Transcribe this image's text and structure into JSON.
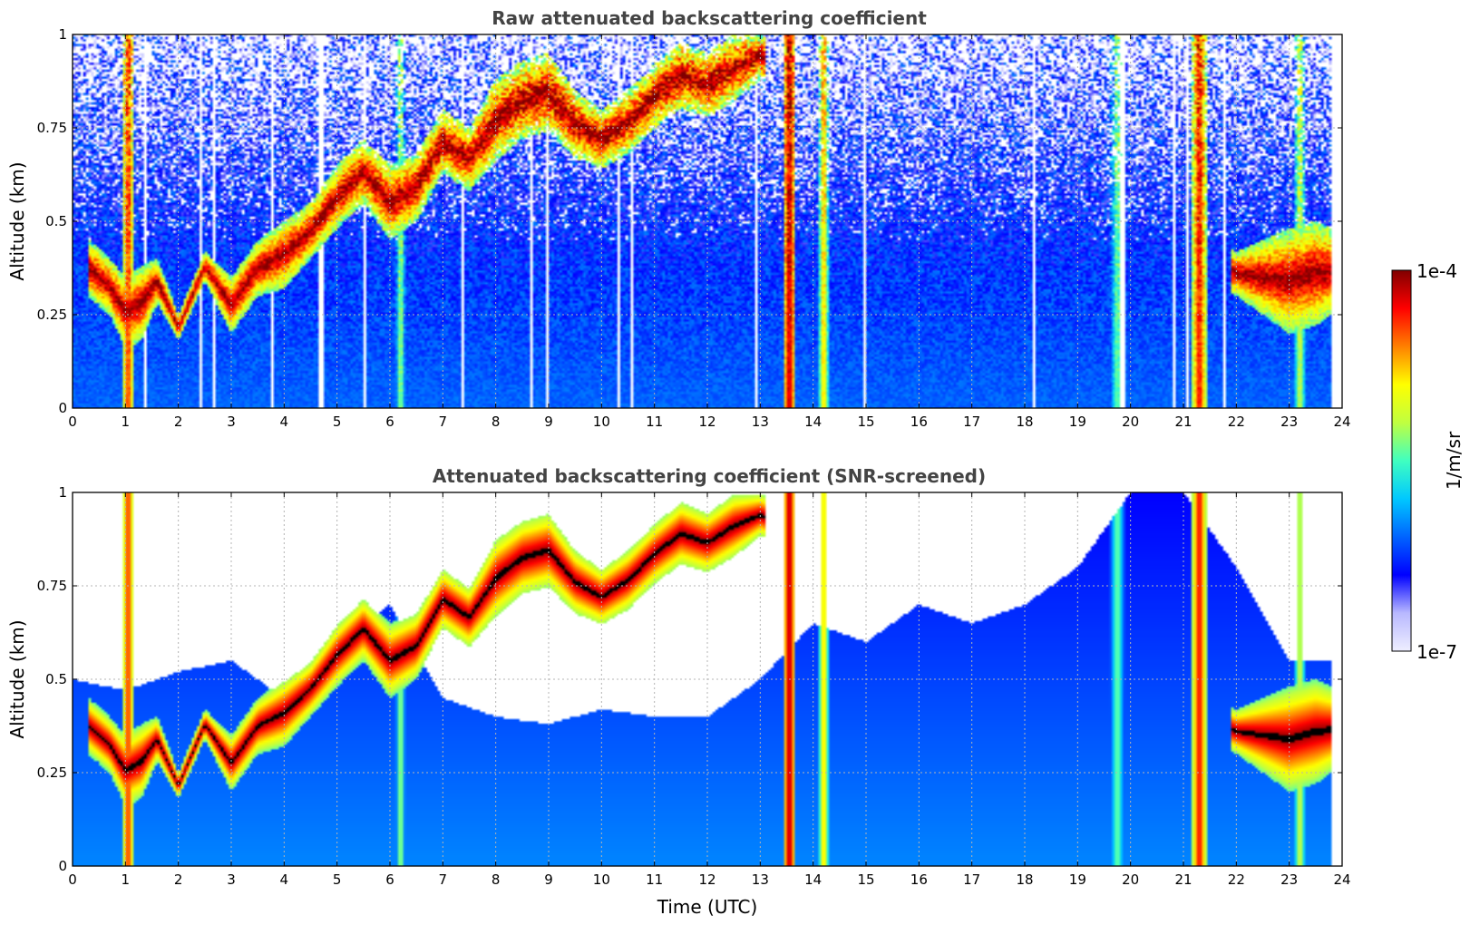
{
  "colors": {
    "background": "#ffffff",
    "title": "#444444",
    "grid": "#b4b4b4",
    "sky_floor": "#1e3cff",
    "cloud_core": "#800000",
    "saturated": "#000000",
    "colorscale": [
      "#eeeeff",
      "#b8b8ff",
      "#0000ff",
      "#0064ff",
      "#00c8ff",
      "#40ffc0",
      "#c0ff40",
      "#ffff00",
      "#ff8000",
      "#ff0000",
      "#800000"
    ]
  },
  "colorbar": {
    "label": "1/m/sr",
    "top_label": "1e-4",
    "bottom_label": "1e-7",
    "scale": "log",
    "range": [
      1e-07,
      0.0001
    ],
    "colormap": "jet"
  },
  "chart_data": [
    {
      "type": "heatmap",
      "title": "Raw attenuated backscattering coefficient",
      "xlabel": "",
      "ylabel": "Altitude (km)",
      "xlim": [
        0,
        24
      ],
      "ylim": [
        0,
        1
      ],
      "x_ticks": [
        "0",
        "1",
        "2",
        "3",
        "4",
        "5",
        "6",
        "7",
        "8",
        "9",
        "10",
        "11",
        "12",
        "13",
        "14",
        "15",
        "16",
        "17",
        "18",
        "19",
        "20",
        "21",
        "22",
        "23",
        "24"
      ],
      "y_ticks": [
        "0",
        "0.25",
        "0.5",
        "0.75",
        "1"
      ],
      "grid": true,
      "data_end_hour": 23.8,
      "z_scale": "log10",
      "background_log10": -6.5,
      "noise_level": 0.5,
      "cloud_layer_log10": -4.0,
      "cloud_layer": {
        "hours": [
          0.3,
          0.7,
          1.0,
          1.3,
          1.6,
          2.0,
          2.5,
          3.0,
          3.5,
          4.0,
          4.5,
          5.0,
          5.5,
          6.0,
          6.5,
          7.0,
          7.5,
          8.0,
          8.5,
          9.0,
          9.5,
          10.0,
          10.5,
          11.0,
          11.5,
          12.0,
          12.5,
          13.0,
          22.0,
          22.5,
          23.0,
          23.5,
          23.8
        ],
        "base_km": [
          0.3,
          0.25,
          0.16,
          0.18,
          0.28,
          0.18,
          0.34,
          0.2,
          0.3,
          0.32,
          0.4,
          0.48,
          0.55,
          0.45,
          0.5,
          0.63,
          0.58,
          0.66,
          0.72,
          0.74,
          0.67,
          0.64,
          0.68,
          0.75,
          0.8,
          0.78,
          0.82,
          0.88,
          0.3,
          0.25,
          0.2,
          0.22,
          0.25
        ],
        "top_km": [
          0.45,
          0.4,
          0.35,
          0.38,
          0.4,
          0.25,
          0.42,
          0.35,
          0.45,
          0.5,
          0.55,
          0.65,
          0.72,
          0.65,
          0.68,
          0.8,
          0.75,
          0.88,
          0.93,
          0.95,
          0.85,
          0.8,
          0.85,
          0.92,
          0.98,
          0.95,
          1.0,
          1.0,
          0.42,
          0.45,
          0.48,
          0.5,
          0.48
        ]
      },
      "precipitation_shafts": [
        {
          "hour": 1.05,
          "width_h": 0.25,
          "log10": -4.3
        },
        {
          "hour": 6.2,
          "width_h": 0.2,
          "log10": -5.1
        },
        {
          "hour": 13.55,
          "width_h": 0.25,
          "log10": -4.0
        },
        {
          "hour": 14.2,
          "width_h": 0.18,
          "log10": -4.6
        },
        {
          "hour": 19.75,
          "width_h": 0.35,
          "log10": -5.3
        },
        {
          "hour": 21.3,
          "width_h": 0.3,
          "log10": -4.2
        },
        {
          "hour": 23.2,
          "width_h": 0.25,
          "log10": -5.0
        }
      ]
    },
    {
      "type": "heatmap",
      "title": "Attenuated backscattering coefficient (SNR-screened)",
      "xlabel": "Time (UTC)",
      "ylabel": "Altitude (km)",
      "xlim": [
        0,
        24
      ],
      "ylim": [
        0,
        1
      ],
      "x_ticks": [
        "0",
        "1",
        "2",
        "3",
        "4",
        "5",
        "6",
        "7",
        "8",
        "9",
        "10",
        "11",
        "12",
        "13",
        "14",
        "15",
        "16",
        "17",
        "18",
        "19",
        "20",
        "21",
        "22",
        "23",
        "24"
      ],
      "y_ticks": [
        "0",
        "0.25",
        "0.5",
        "0.75",
        "1"
      ],
      "grid": true,
      "data_end_hour": 23.8,
      "z_scale": "log10",
      "background_log10": -6.4,
      "noise_level": 0.0,
      "saturation_log10": -4.15,
      "cloud_layer_log10": -4.0,
      "screened_out_above_km": {
        "hours": [
          0.0,
          1.0,
          2.0,
          3.0,
          4.0,
          5.0,
          6.0,
          7.0,
          8.0,
          9.0,
          10.0,
          11.0,
          12.0,
          13.0,
          14.0,
          15.0,
          16.0,
          17.0,
          18.0,
          19.0,
          20.0,
          21.0,
          22.0,
          23.0,
          23.8
        ],
        "km": [
          0.5,
          0.47,
          0.52,
          0.55,
          0.45,
          0.6,
          0.7,
          0.45,
          0.4,
          0.38,
          0.42,
          0.4,
          0.4,
          0.5,
          0.65,
          0.6,
          0.7,
          0.65,
          0.7,
          0.8,
          1.0,
          1.0,
          0.8,
          0.55,
          0.55
        ]
      },
      "cloud_layer": {
        "hours": [
          0.3,
          0.7,
          1.0,
          1.3,
          1.6,
          2.0,
          2.5,
          3.0,
          3.5,
          4.0,
          4.5,
          5.0,
          5.5,
          6.0,
          6.5,
          7.0,
          7.5,
          8.0,
          8.5,
          9.0,
          9.5,
          10.0,
          10.5,
          11.0,
          11.5,
          12.0,
          12.5,
          13.0,
          22.0,
          22.5,
          23.0,
          23.5,
          23.8
        ],
        "base_km": [
          0.3,
          0.25,
          0.16,
          0.18,
          0.28,
          0.18,
          0.34,
          0.2,
          0.3,
          0.32,
          0.4,
          0.48,
          0.55,
          0.45,
          0.5,
          0.63,
          0.58,
          0.66,
          0.72,
          0.74,
          0.67,
          0.64,
          0.68,
          0.75,
          0.8,
          0.78,
          0.82,
          0.88,
          0.3,
          0.25,
          0.2,
          0.22,
          0.25
        ],
        "top_km": [
          0.45,
          0.4,
          0.35,
          0.38,
          0.4,
          0.25,
          0.42,
          0.35,
          0.45,
          0.5,
          0.55,
          0.65,
          0.72,
          0.65,
          0.68,
          0.8,
          0.75,
          0.88,
          0.93,
          0.95,
          0.85,
          0.8,
          0.85,
          0.92,
          0.98,
          0.95,
          1.0,
          1.0,
          0.42,
          0.45,
          0.48,
          0.5,
          0.48
        ]
      },
      "precipitation_shafts": [
        {
          "hour": 1.05,
          "width_h": 0.25,
          "log10": -4.3
        },
        {
          "hour": 6.2,
          "width_h": 0.2,
          "log10": -5.1
        },
        {
          "hour": 13.55,
          "width_h": 0.25,
          "log10": -4.0
        },
        {
          "hour": 14.2,
          "width_h": 0.18,
          "log10": -4.6
        },
        {
          "hour": 19.75,
          "width_h": 0.35,
          "log10": -5.3
        },
        {
          "hour": 21.3,
          "width_h": 0.3,
          "log10": -4.2
        },
        {
          "hour": 23.2,
          "width_h": 0.25,
          "log10": -5.0
        }
      ]
    }
  ]
}
